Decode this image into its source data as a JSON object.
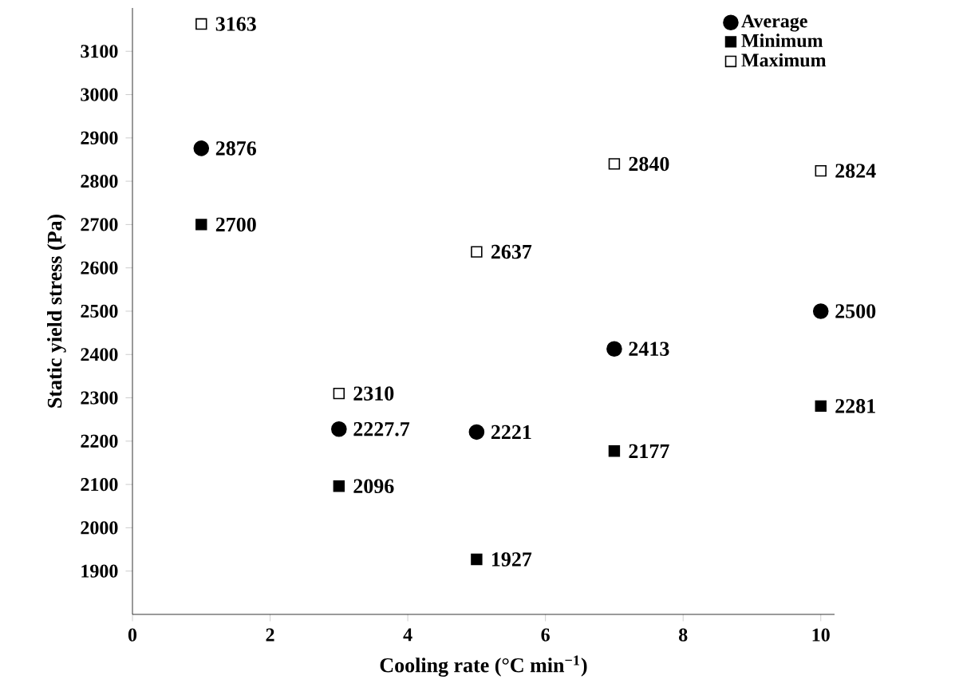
{
  "chart_data": {
    "type": "scatter",
    "xlabel": "Cooling rate (°C min$^{−1}$)",
    "ylabel": "Static yield stress (Pa)",
    "x": [
      1,
      3,
      5,
      7,
      10
    ],
    "series": [
      {
        "name": "Average",
        "color": "#000000",
        "marker": "circle",
        "values": [
          2876,
          2227.7,
          2221,
          2413,
          2500
        ]
      },
      {
        "name": "Minimum",
        "color": "#000000",
        "marker": "square",
        "values": [
          2700,
          2096,
          1927,
          2177,
          2281
        ]
      },
      {
        "name": "Maximum",
        "color": "#000000",
        "marker": "square",
        "values": [
          3163,
          2310,
          2637,
          2840,
          2824
        ]
      }
    ],
    "xlim": [
      0,
      10.2
    ],
    "ylim": [
      1800,
      3200
    ],
    "xticks": [
      0,
      2,
      4,
      6,
      8,
      10
    ],
    "yticks": [
      1900,
      2000,
      2100,
      2200,
      2300,
      2400,
      2500,
      2600,
      2700,
      2800,
      2900,
      3000,
      3100
    ],
    "data_labels": true,
    "grid": false,
    "legend": "top right"
  }
}
